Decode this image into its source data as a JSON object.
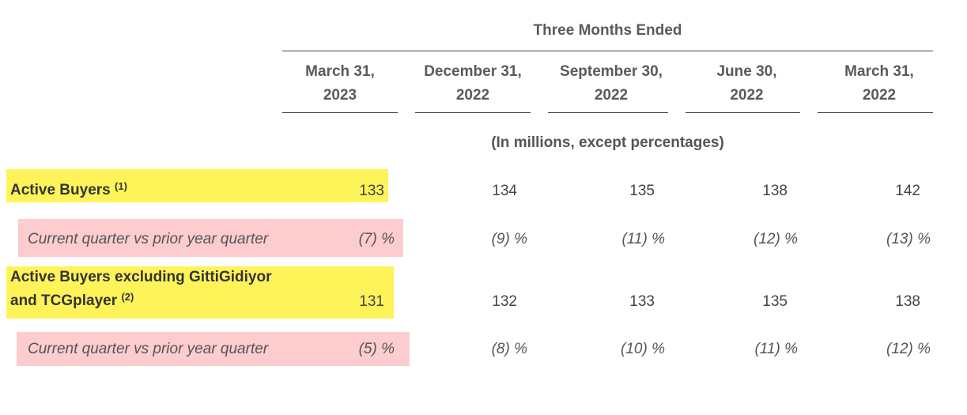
{
  "header": {
    "group_title": "Three Months Ended",
    "units": "(In millions, except percentages)",
    "columns": [
      {
        "line1": "March 31,",
        "line2": "2023"
      },
      {
        "line1": "December 31,",
        "line2": "2022"
      },
      {
        "line1": "September 30,",
        "line2": "2022"
      },
      {
        "line1": "June 30,",
        "line2": "2022"
      },
      {
        "line1": "March 31,",
        "line2": "2022"
      }
    ]
  },
  "rows": {
    "active_buyers": {
      "label": "Active Buyers",
      "note": "(1)",
      "values": [
        "133",
        "134",
        "135",
        "138",
        "142"
      ]
    },
    "active_buyers_yoy": {
      "label": "Current quarter vs prior year quarter",
      "values": [
        "(7) %",
        "(9) %",
        "(11) %",
        "(12) %",
        "(13) %"
      ]
    },
    "active_buyers_excl": {
      "label_line1": "Active Buyers excluding GittiGidiyor",
      "label_line2": "and TCGplayer",
      "note": "(2)",
      "values": [
        "131",
        "132",
        "133",
        "135",
        "138"
      ]
    },
    "active_buyers_excl_yoy": {
      "label": "Current quarter vs prior year quarter",
      "values": [
        "(5) %",
        "(8) %",
        "(10) %",
        "(11) %",
        "(12) %"
      ]
    }
  },
  "colors": {
    "highlight_yellow": "#fef45a",
    "highlight_pink": "#fccccf"
  }
}
